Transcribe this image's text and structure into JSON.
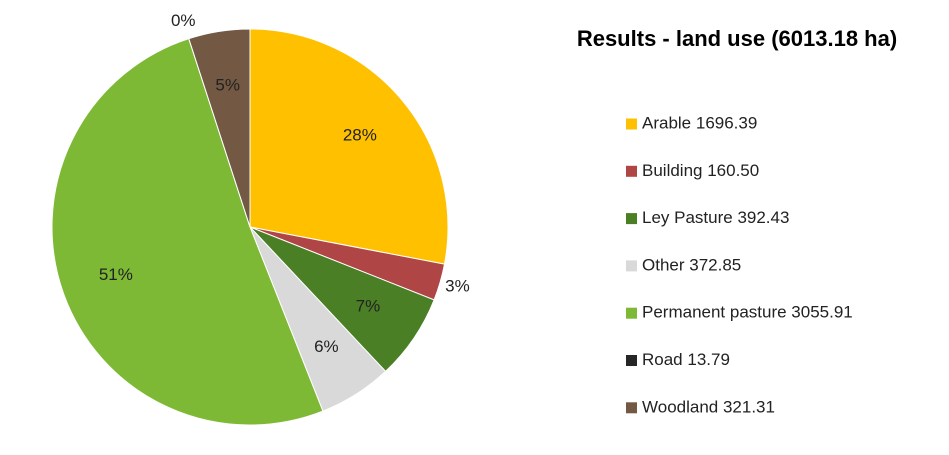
{
  "chart_data": {
    "type": "pie",
    "title": "Results - land use (6013.18 ha)",
    "categories": [
      "Arable 1696.39",
      "Building 160.50",
      "Ley Pasture 392.43",
      "Other 372.85",
      "Permanent pasture 3055.91",
      "Road 13.79",
      "Woodland 321.31"
    ],
    "values": [
      28,
      3,
      7,
      6,
      51,
      0,
      5
    ],
    "value_labels": [
      "28%",
      "3%",
      "7%",
      "6%",
      "51%",
      "0%",
      "5%"
    ],
    "colors": [
      "#ffc000",
      "#b04545",
      "#4a7f26",
      "#d9d9d9",
      "#7db934",
      "#262626",
      "#735843"
    ],
    "legend": "right"
  }
}
